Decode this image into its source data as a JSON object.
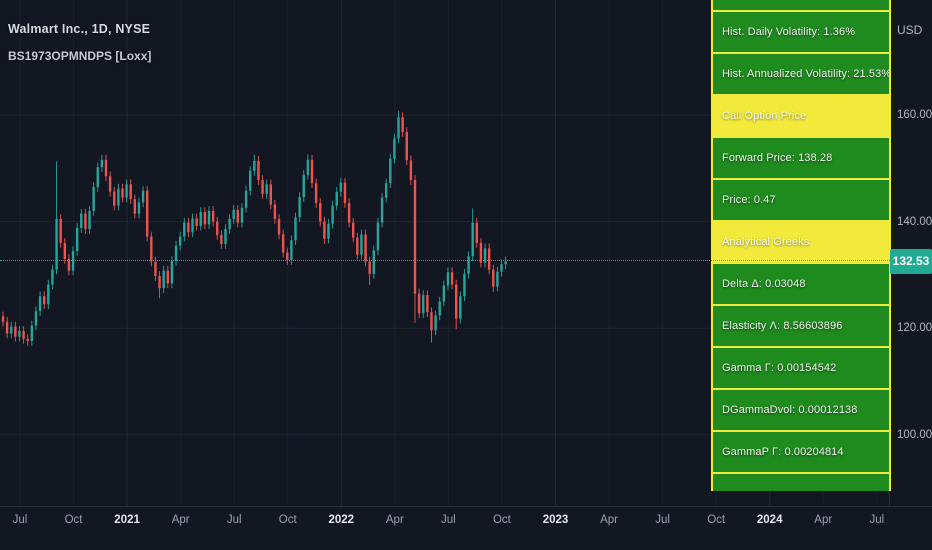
{
  "legend": {
    "symbol_title": "Walmart Inc., 1D, NYSE",
    "indicator_title": "BS1973OPMNDPS [Loxx]"
  },
  "price_axis": {
    "currency": "USD",
    "ticks": [
      {
        "label": "160.00",
        "value": 160
      },
      {
        "label": "140.00",
        "value": 140
      },
      {
        "label": "120.00",
        "value": 120
      },
      {
        "label": "100.00",
        "value": 100
      }
    ],
    "last_price_label": "132.53",
    "last_price": 132.53
  },
  "time_axis": {
    "ticks": [
      {
        "label": "Jul",
        "m": 0,
        "major": false
      },
      {
        "label": "Oct",
        "m": 3,
        "major": false
      },
      {
        "label": "2021",
        "m": 6,
        "major": true
      },
      {
        "label": "Apr",
        "m": 9,
        "major": false
      },
      {
        "label": "Jul",
        "m": 12,
        "major": false
      },
      {
        "label": "Oct",
        "m": 15,
        "major": false
      },
      {
        "label": "2022",
        "m": 18,
        "major": true
      },
      {
        "label": "Apr",
        "m": 21,
        "major": false
      },
      {
        "label": "Jul",
        "m": 24,
        "major": false
      },
      {
        "label": "Oct",
        "m": 27,
        "major": false
      },
      {
        "label": "2023",
        "m": 30,
        "major": true
      },
      {
        "label": "Apr",
        "m": 33,
        "major": false
      },
      {
        "label": "Jul",
        "m": 36,
        "major": false
      },
      {
        "label": "Oct",
        "m": 39,
        "major": false
      },
      {
        "label": "2024",
        "m": 42,
        "major": true
      },
      {
        "label": "Apr",
        "m": 45,
        "major": false
      },
      {
        "label": "Jul",
        "m": 48,
        "major": false
      }
    ]
  },
  "indicator_table": {
    "rows": [
      {
        "label": "",
        "style": "green",
        "partial": "top"
      },
      {
        "label": "Hist. Daily Volatility: 1.36%",
        "style": "green"
      },
      {
        "label": "Hist. Annualized Volatility: 21.53%",
        "style": "green"
      },
      {
        "label": "Call Option Price",
        "style": "yellow"
      },
      {
        "label": "Forward Price: 138.28",
        "style": "green"
      },
      {
        "label": "Price: 0.47",
        "style": "green"
      },
      {
        "label": "Analytical Greeks",
        "style": "yellow"
      },
      {
        "label": "Delta Δ: 0.03048",
        "style": "green"
      },
      {
        "label": "Elasticity Λ: 8.56603896",
        "style": "green"
      },
      {
        "label": "Gamma Γ: 0.00154542",
        "style": "green"
      },
      {
        "label": "DGammaDvol: 0.00012138",
        "style": "green"
      },
      {
        "label": "GammaP Γ: 0.00204814",
        "style": "green"
      },
      {
        "label": "",
        "style": "green",
        "partial": "bottom"
      }
    ]
  },
  "colors": {
    "background": "#131722",
    "candle_up": "#26a69a",
    "candle_down": "#ef5350",
    "table_green": "#1f8b1f",
    "table_yellow": "#f2ea3a",
    "last_price_accent": "#22ab94",
    "axis_text": "#b0b5c0",
    "year_text": "#e4e7ee"
  },
  "chart_data": {
    "type": "candlestick",
    "symbol": "Walmart Inc.",
    "exchange": "NYSE",
    "interval": "1D",
    "visible_time_range": [
      "Jun 2020",
      "Jul 2024"
    ],
    "data_time_range": [
      "Jun 2020",
      "Oct 2022"
    ],
    "price_ticks": [
      160,
      140,
      120,
      100
    ],
    "visible_price_range": [
      95,
      168
    ],
    "last_close": 132.53,
    "weekly_closes": [
      121.2,
      119.0,
      120.3,
      118.4,
      119.5,
      118.0,
      117.6,
      120.5,
      123.2,
      126.0,
      124.5,
      128.2,
      131.0,
      140.5,
      136.0,
      133.0,
      130.8,
      134.5,
      138.8,
      141.5,
      138.6,
      142.0,
      146.5,
      150.2,
      151.6,
      148.5,
      145.6,
      143.0,
      146.2,
      144.5,
      147.0,
      144.2,
      141.5,
      143.6,
      145.8,
      137.2,
      132.5,
      129.8,
      127.5,
      130.8,
      128.4,
      132.6,
      135.5,
      137.2,
      139.8,
      138.0,
      140.6,
      139.2,
      141.8,
      139.5,
      142.0,
      140.0,
      137.5,
      135.8,
      138.6,
      140.5,
      142.2,
      139.8,
      142.6,
      145.8,
      149.5,
      151.4,
      147.8,
      145.2,
      147.0,
      143.2,
      140.5,
      137.6,
      134.2,
      132.8,
      136.5,
      140.8,
      144.6,
      148.8,
      151.6,
      147.2,
      143.5,
      140.0,
      136.8,
      139.6,
      143.0,
      145.6,
      147.3,
      143.5,
      139.8,
      137.0,
      133.8,
      137.6,
      132.5,
      130.2,
      134.6,
      139.8,
      144.5,
      147.2,
      151.8,
      155.6,
      159.6,
      156.8,
      151.5,
      147.8,
      126.5,
      122.8,
      126.2,
      123.0,
      119.6,
      122.4,
      125.0,
      128.0,
      130.5,
      128.2,
      121.8,
      126.0,
      130.2,
      133.5,
      139.8,
      136.0,
      132.3,
      135.0,
      131.0,
      127.8,
      130.6,
      132.0,
      132.53
    ],
    "wick_high_overrides": {
      "13": 151.3,
      "61": 152.6,
      "74": 152.6,
      "96": 160.8,
      "114": 142.5
    },
    "wick_low_overrides": {
      "38": 125.6,
      "69": 131.9,
      "78": 135.8,
      "89": 128.1,
      "100": 121.0,
      "104": 117.3,
      "110": 119.8,
      "119": 126.8
    }
  }
}
